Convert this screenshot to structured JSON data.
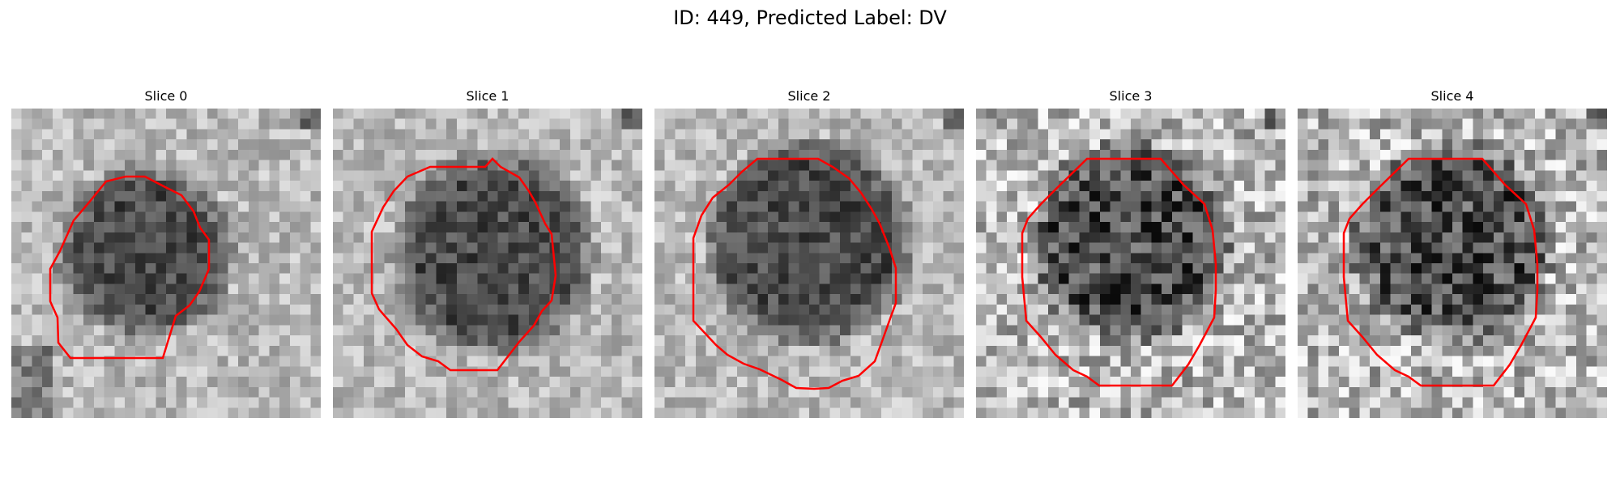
{
  "figure": {
    "title": "ID: 449, Predicted Label: DV",
    "contour_color": "#ff0000"
  },
  "slices": [
    {
      "label": "Slice 0"
    },
    {
      "label": "Slice 1"
    },
    {
      "label": "Slice 2"
    },
    {
      "label": "Slice 3"
    },
    {
      "label": "Slice 4"
    }
  ]
}
